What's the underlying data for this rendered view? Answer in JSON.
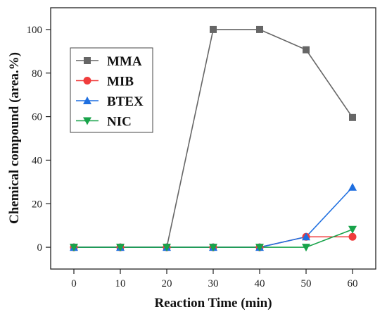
{
  "chart_data": {
    "type": "line",
    "xlabel": "Reaction Time (min)",
    "ylabel": "Chemical compound (area.%)",
    "xlim": [
      -5,
      65
    ],
    "ylim": [
      -10,
      110
    ],
    "xticks": [
      0,
      10,
      20,
      30,
      40,
      50,
      60
    ],
    "yticks": [
      0,
      20,
      40,
      60,
      80,
      100
    ],
    "x": [
      0,
      10,
      20,
      30,
      40,
      50,
      60
    ],
    "grid": false,
    "legend_position": "top-left",
    "series": [
      {
        "name": "MMA",
        "marker": "square",
        "color": "#666666",
        "values": [
          0,
          0,
          0,
          100,
          100,
          90.7,
          59.6
        ]
      },
      {
        "name": "MIB",
        "marker": "circle",
        "color": "#f03c3c",
        "values": [
          0,
          0,
          0,
          0,
          0,
          4.8,
          4.8
        ]
      },
      {
        "name": "BTEX",
        "marker": "triangle-up",
        "color": "#1f6fe0",
        "values": [
          0,
          0,
          0,
          0,
          0,
          4.8,
          27.6
        ]
      },
      {
        "name": "NIC",
        "marker": "triangle-down",
        "color": "#18a34a",
        "values": [
          0,
          0,
          0,
          0,
          0,
          0,
          8.2
        ]
      }
    ]
  }
}
